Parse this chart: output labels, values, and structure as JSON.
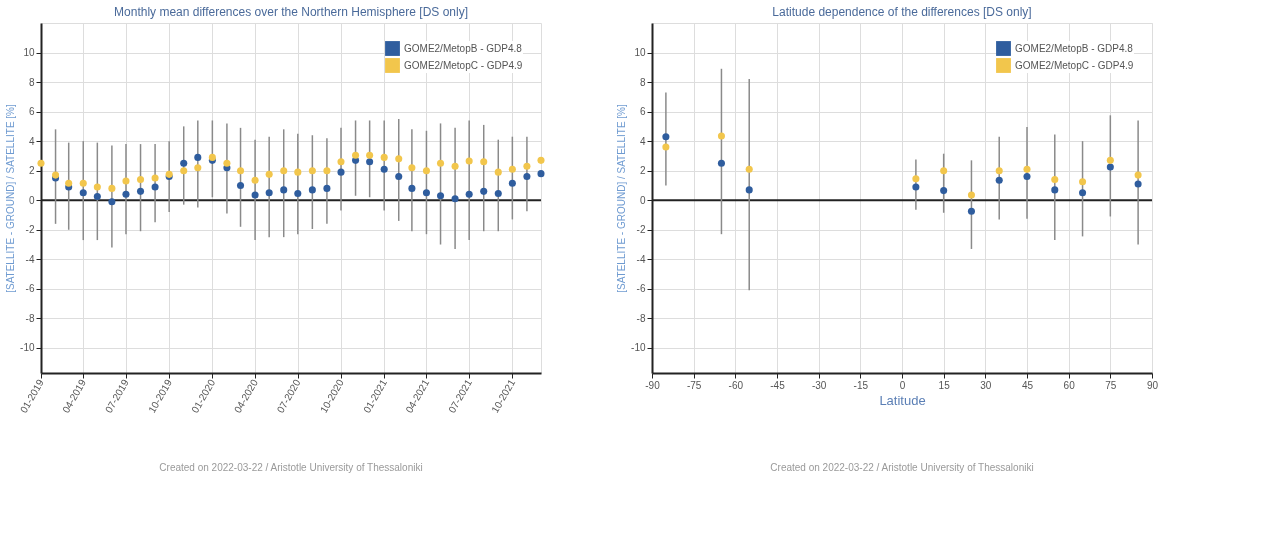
{
  "chart_data": [
    {
      "type": "scatter",
      "title": "Monthly mean differences over the Northern Hemisphere [DS only]",
      "ylabel": "[SATELLITE - GROUND] / SATELLITE [%]",
      "annotations": [
        "Created on 2022-03-22 / Aristotle University of Thessaloniki"
      ],
      "x": [
        "2019-01",
        "2019-02",
        "2019-03",
        "2019-04",
        "2019-05",
        "2019-06",
        "2019-07",
        "2019-08",
        "2019-09",
        "2019-10",
        "2019-11",
        "2019-12",
        "2020-01",
        "2020-02",
        "2020-03",
        "2020-04",
        "2020-05",
        "2020-06",
        "2020-07",
        "2020-08",
        "2020-09",
        "2020-10",
        "2020-11",
        "2020-12",
        "2021-01",
        "2021-02",
        "2021-03",
        "2021-04",
        "2021-05",
        "2021-06",
        "2021-07",
        "2021-08",
        "2021-09",
        "2021-10",
        "2021-11",
        "2021-12"
      ],
      "series": [
        {
          "name": "GOME2/MetopB - GDP4.8",
          "color": "#2f5d9e",
          "values": [
            null,
            1.5,
            0.9,
            0.5,
            0.25,
            -0.1,
            0.4,
            0.6,
            0.9,
            1.6,
            2.5,
            2.9,
            2.7,
            2.2,
            1.0,
            0.35,
            0.5,
            0.7,
            0.45,
            0.7,
            0.8,
            1.9,
            2.7,
            2.6,
            2.1,
            1.6,
            0.8,
            0.5,
            0.3,
            0.1,
            0.4,
            0.6,
            0.45,
            1.15,
            1.6,
            1.8
          ],
          "errors": [
            null,
            [
              -1.6,
              4.8
            ],
            [
              -2.0,
              3.9
            ],
            [
              -2.7,
              4.0
            ],
            [
              -2.7,
              3.9
            ],
            [
              -3.2,
              3.7
            ],
            [
              -2.3,
              3.8
            ],
            [
              -2.1,
              3.8
            ],
            [
              -1.5,
              3.8
            ],
            [
              -0.8,
              4.0
            ],
            [
              -0.3,
              5.0
            ],
            [
              -0.5,
              5.4
            ],
            [
              0.2,
              5.4
            ],
            [
              -0.9,
              5.2
            ],
            [
              -1.8,
              4.9
            ],
            [
              -2.7,
              4.1
            ],
            [
              -2.5,
              4.3
            ],
            [
              -2.5,
              4.8
            ],
            [
              -2.3,
              4.5
            ],
            [
              -1.95,
              4.4
            ],
            [
              -1.6,
              4.2
            ],
            [
              -0.7,
              4.9
            ],
            [
              0.3,
              5.4
            ],
            [
              0.2,
              5.4
            ],
            [
              -0.7,
              5.4
            ],
            [
              -1.4,
              5.5
            ],
            [
              -2.1,
              4.8
            ],
            [
              -2.3,
              4.7
            ],
            [
              -3.0,
              5.2
            ],
            [
              -3.3,
              4.9
            ],
            [
              -2.7,
              5.4
            ],
            [
              -2.1,
              5.1
            ],
            [
              -2.1,
              4.1
            ],
            [
              -1.3,
              4.3
            ],
            [
              -0.75,
              4.3
            ],
            null
          ]
        },
        {
          "name": "GOME2/MetopC - GDP4.9",
          "color": "#f2c64c",
          "values": [
            2.5,
            1.7,
            1.15,
            1.15,
            0.9,
            0.8,
            1.3,
            1.4,
            1.5,
            1.75,
            2.0,
            2.2,
            2.9,
            2.5,
            2.0,
            1.35,
            1.75,
            2.0,
            1.9,
            2.0,
            2.0,
            2.6,
            3.05,
            3.05,
            2.9,
            2.8,
            2.2,
            2.0,
            2.5,
            2.3,
            2.65,
            2.6,
            1.9,
            2.1,
            2.3,
            2.7
          ]
        }
      ],
      "xlim": [
        "2019-01",
        "2021-12"
      ],
      "xticks": [
        {
          "value": "2019-01",
          "label": "01-2019"
        },
        {
          "value": "2019-04",
          "label": "04-2019"
        },
        {
          "value": "2019-07",
          "label": "07-2019"
        },
        {
          "value": "2019-10",
          "label": "10-2019"
        },
        {
          "value": "2020-01",
          "label": "01-2020"
        },
        {
          "value": "2020-04",
          "label": "04-2020"
        },
        {
          "value": "2020-07",
          "label": "07-2020"
        },
        {
          "value": "2020-10",
          "label": "10-2020"
        },
        {
          "value": "2021-01",
          "label": "01-2021"
        },
        {
          "value": "2021-04",
          "label": "04-2021"
        },
        {
          "value": "2021-07",
          "label": "07-2021"
        },
        {
          "value": "2021-10",
          "label": "10-2021"
        }
      ],
      "ylim": [
        -11.7,
        12
      ],
      "yticks": [
        -10,
        -8,
        -6,
        -4,
        -2,
        0,
        2,
        4,
        6,
        8,
        10
      ],
      "ref_lines": [
        {
          "axis": "y",
          "value": 0,
          "color": "#222222"
        }
      ],
      "grid": true,
      "legend": "top right",
      "marker": "circle"
    },
    {
      "type": "scatter",
      "title": "Latitude dependence of the differences [DS only]",
      "xlabel": "Latitude",
      "ylabel": "[SATELLITE - GROUND] / SATELLITE [%]",
      "annotations": [
        "Created on 2022-03-22 / Aristotle University of Thessaloniki"
      ],
      "x": [
        -85,
        -65,
        -55,
        5,
        15,
        25,
        35,
        45,
        55,
        65,
        75,
        85
      ],
      "series": [
        {
          "name": "GOME2/MetopB - GDP4.8",
          "color": "#2f5d9e",
          "values": [
            4.3,
            2.5,
            0.7,
            0.9,
            0.65,
            -0.75,
            1.35,
            1.6,
            0.7,
            0.5,
            2.25,
            1.1
          ],
          "errors": [
            [
              1.0,
              7.3
            ],
            [
              -2.3,
              8.9
            ],
            [
              -6.1,
              8.2
            ],
            [
              -0.65,
              2.75
            ],
            [
              -0.85,
              3.15
            ],
            [
              -3.3,
              2.7
            ],
            [
              -1.3,
              4.3
            ],
            [
              -1.25,
              4.95
            ],
            [
              -2.7,
              4.45
            ],
            [
              -2.45,
              4.0
            ],
            [
              -1.1,
              5.75
            ],
            [
              -3.0,
              5.4
            ]
          ]
        },
        {
          "name": "GOME2/MetopC - GDP4.9",
          "color": "#f2c64c",
          "values": [
            3.6,
            4.35,
            2.1,
            1.45,
            2.0,
            0.35,
            2.0,
            2.1,
            1.4,
            1.25,
            2.7,
            1.7
          ]
        }
      ],
      "xlim": [
        -90,
        90
      ],
      "xticks": [
        -90,
        -75,
        -60,
        -45,
        -30,
        -15,
        0,
        15,
        30,
        45,
        60,
        75,
        90
      ],
      "ylim": [
        -11.7,
        12
      ],
      "yticks": [
        -10,
        -8,
        -6,
        -4,
        -2,
        0,
        2,
        4,
        6,
        8,
        10
      ],
      "ref_lines": [
        {
          "axis": "y",
          "value": 0,
          "color": "#222222"
        }
      ],
      "grid": true,
      "legend": "top right",
      "marker": "circle"
    }
  ]
}
